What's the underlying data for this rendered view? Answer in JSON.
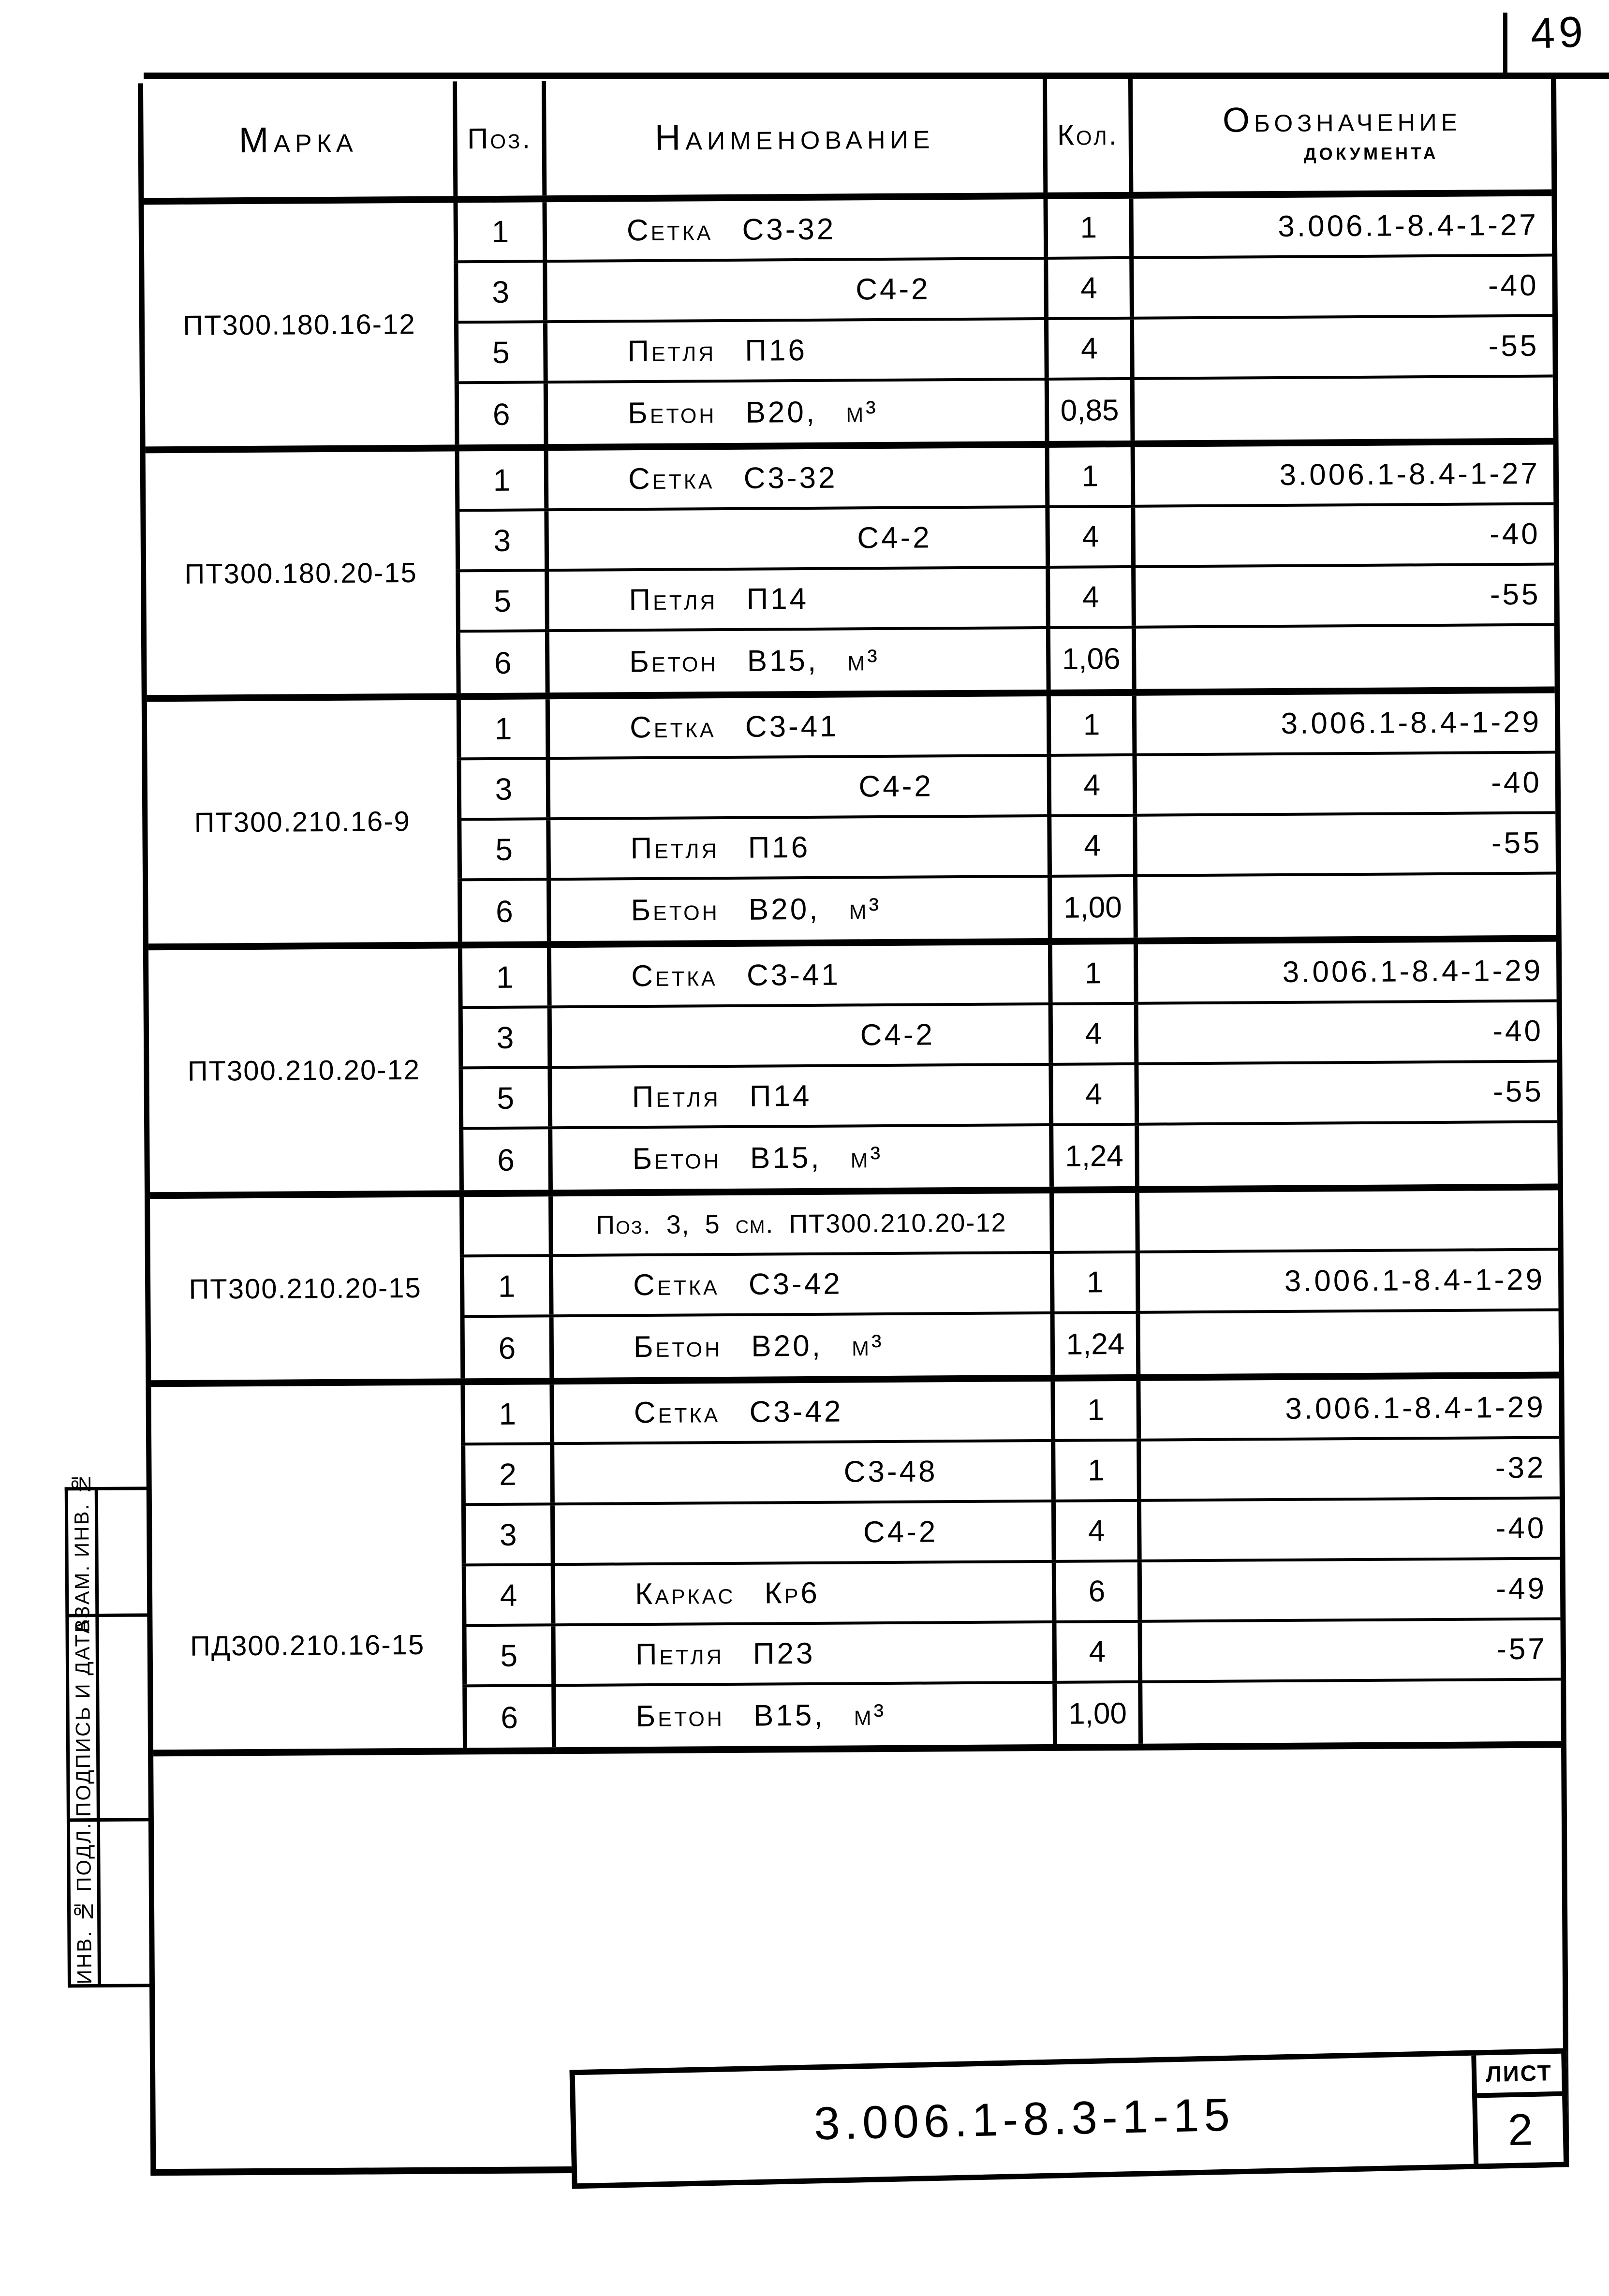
{
  "page": {
    "number": "49"
  },
  "table": {
    "headers": {
      "mark": "Марка",
      "pos": "Поз.",
      "name": "Наименование",
      "qty": "Кол.",
      "doc_line1": "Обозначение",
      "doc_line2": "документа"
    },
    "groups": [
      {
        "mark": "ПТ300.180.16-12",
        "rows": [
          {
            "pos": "1",
            "name": "Сетка С3-32",
            "kind": "full",
            "qty": "1",
            "doc": "3.006.1-8.4-1-27"
          },
          {
            "pos": "3",
            "name": "С4-2",
            "kind": "code",
            "qty": "4",
            "doc": "-40"
          },
          {
            "pos": "5",
            "name": "Петля П16",
            "kind": "full",
            "qty": "4",
            "doc": "-55"
          },
          {
            "pos": "6",
            "name": "Бетон В20, м³",
            "kind": "full",
            "qty": "0,85",
            "doc": ""
          }
        ]
      },
      {
        "mark": "ПТ300.180.20-15",
        "rows": [
          {
            "pos": "1",
            "name": "Сетка С3-32",
            "kind": "full",
            "qty": "1",
            "doc": "3.006.1-8.4-1-27"
          },
          {
            "pos": "3",
            "name": "С4-2",
            "kind": "code",
            "qty": "4",
            "doc": "-40"
          },
          {
            "pos": "5",
            "name": "Петля П14",
            "kind": "full",
            "qty": "4",
            "doc": "-55"
          },
          {
            "pos": "6",
            "name": "Бетон В15, м³",
            "kind": "full",
            "qty": "1,06",
            "doc": ""
          }
        ]
      },
      {
        "mark": "ПТ300.210.16-9",
        "rows": [
          {
            "pos": "1",
            "name": "Сетка С3-41",
            "kind": "full",
            "qty": "1",
            "doc": "3.006.1-8.4-1-29"
          },
          {
            "pos": "3",
            "name": "С4-2",
            "kind": "code",
            "qty": "4",
            "doc": "-40"
          },
          {
            "pos": "5",
            "name": "Петля П16",
            "kind": "full",
            "qty": "4",
            "doc": "-55"
          },
          {
            "pos": "6",
            "name": "Бетон В20, м³",
            "kind": "full",
            "qty": "1,00",
            "doc": ""
          }
        ]
      },
      {
        "mark": "ПТ300.210.20-12",
        "rows": [
          {
            "pos": "1",
            "name": "Сетка С3-41",
            "kind": "full",
            "qty": "1",
            "doc": "3.006.1-8.4-1-29"
          },
          {
            "pos": "3",
            "name": "С4-2",
            "kind": "code",
            "qty": "4",
            "doc": "-40"
          },
          {
            "pos": "5",
            "name": "Петля П14",
            "kind": "full",
            "qty": "4",
            "doc": "-55"
          },
          {
            "pos": "6",
            "name": "Бетон В15, м³",
            "kind": "full",
            "qty": "1,24",
            "doc": ""
          }
        ]
      },
      {
        "mark": "ПТ300.210.20-15",
        "rows": [
          {
            "pos": "",
            "name": "Поз. 3, 5 см. ПТ300.210.20-12",
            "kind": "note",
            "qty": "",
            "doc": ""
          },
          {
            "pos": "1",
            "name": "Сетка С3-42",
            "kind": "full",
            "qty": "1",
            "doc": "3.006.1-8.4-1-29"
          },
          {
            "pos": "6",
            "name": "Бетон В20, м³",
            "kind": "full",
            "qty": "1,24",
            "doc": ""
          }
        ]
      },
      {
        "mark": "ПД300.210.16-15",
        "rows": [
          {
            "pos": "1",
            "name": "Сетка С3-42",
            "kind": "full",
            "qty": "1",
            "doc": "3.006.1-8.4-1-29"
          },
          {
            "pos": "2",
            "name": "С3-48",
            "kind": "code",
            "qty": "1",
            "doc": "-32"
          },
          {
            "pos": "3",
            "name": "С4-2",
            "kind": "code",
            "qty": "4",
            "doc": "-40"
          },
          {
            "pos": "4",
            "name": "Каркас Кр6",
            "kind": "full",
            "qty": "6",
            "doc": "-49"
          },
          {
            "pos": "5",
            "name": "Петля П23",
            "kind": "full",
            "qty": "4",
            "doc": "-57"
          },
          {
            "pos": "6",
            "name": "Бетон В15, м³",
            "kind": "full",
            "qty": "1,00",
            "doc": ""
          }
        ]
      }
    ]
  },
  "stamp": {
    "cells": [
      {
        "label": "ВЗАМ. ИНВ. №"
      },
      {
        "label": "ПОДПИСЬ И ДАТА"
      },
      {
        "label": "ИНВ. № ПОДЛ."
      }
    ]
  },
  "title_block": {
    "doc_number": "3.006.1-8.3-1-15",
    "sheet_label": "ЛИСТ",
    "sheet_number": "2"
  }
}
